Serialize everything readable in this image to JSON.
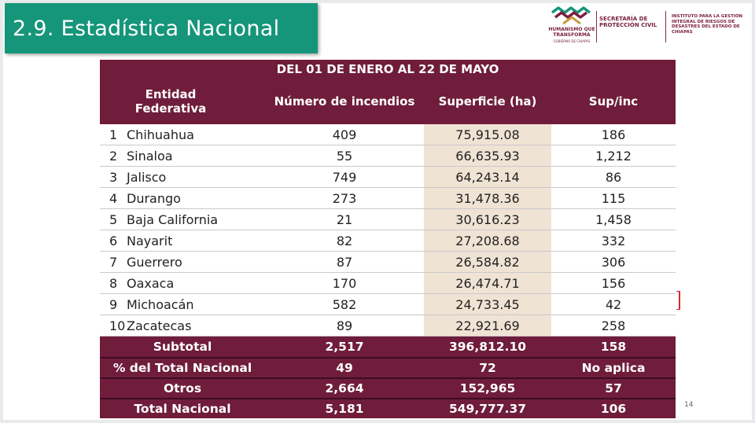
{
  "title": "2.9. Estadística Nacional",
  "logos": {
    "mark_text": "HUMANISMO QUE TRANSFORMA",
    "mark_sub": "GOBIERNO DE CHIAPAS",
    "pc_text": "SECRETARÍA DE PROTECCIÓN CIVIL",
    "inst_text": "INSTITUTO PARA LA GESTIÓN INTEGRAL DE RIESGOS DE DESASTRES DEL ESTADO DE CHIAPAS",
    "brand_color": "#7a1f3d"
  },
  "table": {
    "period": "DEL 01 DE ENERO AL 22 DE MAYO",
    "headers": {
      "entity": "Entidad Federativa",
      "fires": "Número de incendios",
      "area": "Superficie (ha)",
      "ratio": "Sup/inc"
    },
    "rows": [
      {
        "rank": "1",
        "entity": "Chihuahua",
        "fires": "409",
        "area": "75,915.08",
        "ratio": "186"
      },
      {
        "rank": "2",
        "entity": "Sinaloa",
        "fires": "55",
        "area": "66,635.93",
        "ratio": "1,212"
      },
      {
        "rank": "3",
        "entity": "Jalisco",
        "fires": "749",
        "area": "64,243.14",
        "ratio": "86"
      },
      {
        "rank": "4",
        "entity": "Durango",
        "fires": "273",
        "area": "31,478.36",
        "ratio": "115"
      },
      {
        "rank": "5",
        "entity": "Baja California",
        "fires": "21",
        "area": "30,616.23",
        "ratio": "1,458"
      },
      {
        "rank": "6",
        "entity": "Nayarit",
        "fires": "82",
        "area": "27,208.68",
        "ratio": "332"
      },
      {
        "rank": "7",
        "entity": "Guerrero",
        "fires": "87",
        "area": "26,584.82",
        "ratio": "306"
      },
      {
        "rank": "8",
        "entity": "Oaxaca",
        "fires": "170",
        "area": "26,474.71",
        "ratio": "156"
      },
      {
        "rank": "9",
        "entity": "Michoacán",
        "fires": "582",
        "area": "24,733.45",
        "ratio": "42"
      },
      {
        "rank": "10",
        "entity": "Zacatecas",
        "fires": "89",
        "area": "22,921.69",
        "ratio": "258"
      }
    ],
    "footer": [
      {
        "label": "Subtotal",
        "fires": "2,517",
        "area": "396,812.10",
        "ratio": "158"
      },
      {
        "label": "% del Total Nacional",
        "fires": "49",
        "area": "72",
        "ratio": "No aplica"
      },
      {
        "label": "Otros",
        "fires": "2,664",
        "area": "152,965",
        "ratio": "57"
      },
      {
        "label": "Total Nacional",
        "fires": "5,181",
        "area": "549,777.37",
        "ratio": "106"
      }
    ]
  },
  "page_number": "14"
}
